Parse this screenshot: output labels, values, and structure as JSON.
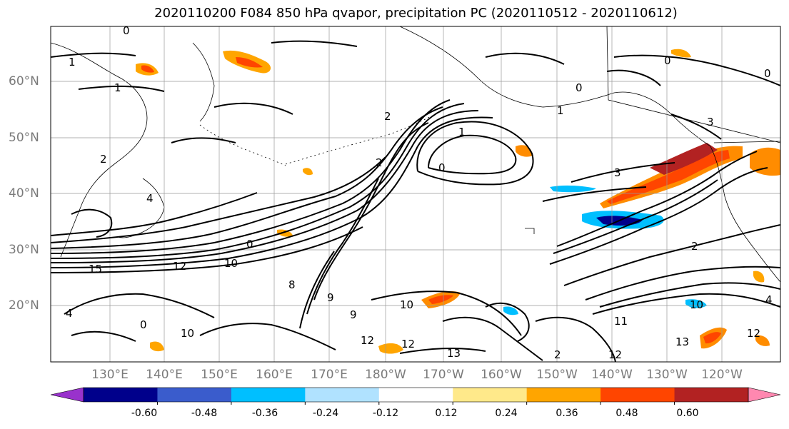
{
  "title": "2020110200 F084 850 hPa qvapor, precipitation PC (2020110512 - 2020110612)",
  "lat_labels": [
    "60°N",
    "50°N",
    "40°N",
    "30°N",
    "20°N"
  ],
  "lon_labels": [
    "130°E",
    "140°E",
    "150°E",
    "160°E",
    "170°E",
    "180°W",
    "170°W",
    "160°W",
    "150°W",
    "140°W",
    "130°W",
    "120°W"
  ],
  "colorbar": {
    "colors": [
      "#9932cc",
      "#00008b",
      "#3a5ccc",
      "#00bfff",
      "#b0e2ff",
      "#ffffff",
      "#ffe98a",
      "#ffa500",
      "#ff4500",
      "#b22222",
      "#ff88b0"
    ],
    "tick_labels": [
      "-0.60",
      "-0.48",
      "-0.36",
      "-0.24",
      "-0.12",
      "0.12",
      "0.24",
      "0.36",
      "0.48",
      "0.60"
    ]
  },
  "contour_labels": [
    "0",
    "1",
    "1",
    "0",
    "2",
    "0",
    "1",
    "2",
    "0",
    "0",
    "3",
    "1",
    "2",
    "3",
    "2",
    "4",
    "10",
    "15",
    "12",
    "10",
    "9",
    "9",
    "8",
    "10",
    "4",
    "0",
    "12",
    "13",
    "12",
    "10",
    "13",
    "2",
    "12",
    "11",
    "12",
    "4",
    "0"
  ]
}
